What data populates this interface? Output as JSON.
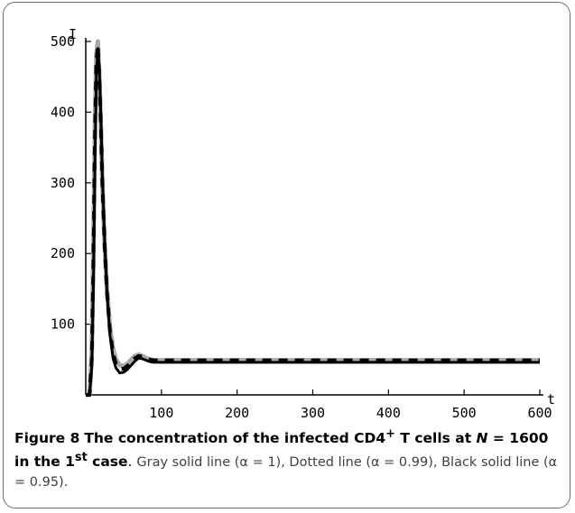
{
  "caption": {
    "label": "Figure 8",
    "title_html": "The concentration of the infected CD4<sup>+</sup> T cells at <i>N</i> = 1600 in the 1<sup>st</sup> case",
    "legend": "Gray solid line (α = 1), Dotted line (α = 0.99), Black solid line (α = 0.95)."
  },
  "chart_data": {
    "type": "line",
    "title": "",
    "xlabel": "t",
    "ylabel": "I",
    "xlim": [
      0,
      600
    ],
    "ylim": [
      0,
      500
    ],
    "x_ticks": [
      100,
      200,
      300,
      400,
      500,
      600
    ],
    "x_tick_labels": [
      "100",
      "200",
      "300",
      "400",
      "500",
      "600"
    ],
    "y_ticks": [
      100,
      200,
      300,
      400,
      500
    ],
    "y_tick_labels": [
      "100",
      "200",
      "300",
      "400",
      "500"
    ],
    "grid": false,
    "legend": "none (described in caption)",
    "series": [
      {
        "name": "Gray solid line (α = 1)",
        "color": "#a8a8a8",
        "style": "solid",
        "x": [
          0,
          5,
          8,
          10,
          12,
          14,
          16,
          18,
          20,
          22,
          25,
          28,
          32,
          36,
          40,
          45,
          50,
          55,
          60,
          65,
          70,
          75,
          80,
          85,
          90,
          95,
          100,
          120,
          150,
          200,
          300,
          400,
          500,
          600
        ],
        "y": [
          0,
          0,
          60,
          200,
          380,
          480,
          500,
          450,
          380,
          300,
          210,
          150,
          95,
          65,
          50,
          42,
          41,
          44,
          50,
          55,
          57,
          55,
          52,
          50,
          49,
          49,
          49,
          49,
          49,
          49,
          49,
          49,
          49,
          49
        ]
      },
      {
        "name": "Dotted line (α = 0.99)",
        "color": "#000000",
        "style": "dashed",
        "x": [
          0,
          5,
          8,
          10,
          12,
          14,
          16,
          18,
          20,
          22,
          25,
          28,
          32,
          36,
          40,
          45,
          50,
          55,
          60,
          65,
          70,
          75,
          80,
          85,
          90,
          95,
          100,
          120,
          150,
          200,
          300,
          400,
          500,
          600
        ],
        "y": [
          0,
          0,
          50,
          180,
          360,
          470,
          495,
          450,
          380,
          300,
          210,
          145,
          90,
          58,
          44,
          37,
          37,
          41,
          46,
          52,
          55,
          54,
          52,
          50,
          49,
          49,
          49,
          49,
          49,
          49,
          49,
          49,
          49,
          49
        ]
      },
      {
        "name": "Black solid line (α = 0.95)",
        "color": "#000000",
        "style": "solid",
        "x": [
          0,
          5,
          8,
          10,
          12,
          14,
          16,
          18,
          20,
          22,
          25,
          28,
          32,
          36,
          40,
          45,
          50,
          55,
          60,
          65,
          70,
          75,
          80,
          85,
          90,
          95,
          100,
          120,
          150,
          200,
          300,
          400,
          500,
          600
        ],
        "y": [
          0,
          0,
          40,
          150,
          320,
          450,
          490,
          460,
          390,
          310,
          215,
          145,
          85,
          52,
          38,
          31,
          32,
          36,
          42,
          48,
          52,
          51,
          49,
          47,
          46,
          46,
          46,
          46,
          46,
          46,
          46,
          46,
          46,
          46
        ]
      }
    ]
  }
}
